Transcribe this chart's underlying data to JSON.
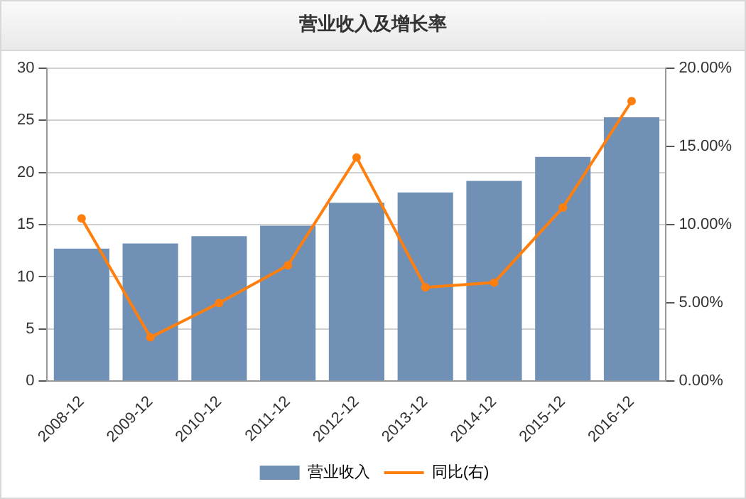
{
  "chart_data": {
    "type": "bar",
    "title": "营业收入及增长率",
    "categories": [
      "2008-12",
      "2009-12",
      "2010-12",
      "2011-12",
      "2012-12",
      "2013-12",
      "2014-12",
      "2015-12",
      "2016-12"
    ],
    "series": [
      {
        "name": "营业收入",
        "color": "#7190b6",
        "values": [
          12.7,
          13.2,
          13.9,
          14.9,
          17.1,
          18.1,
          19.2,
          21.5,
          25.3
        ]
      },
      {
        "name": "同比(右)",
        "type": "line",
        "axis": "y2",
        "color": "#ff7f0e",
        "values": [
          10.4,
          2.8,
          5.0,
          7.4,
          14.3,
          6.0,
          6.3,
          11.1,
          17.9
        ]
      }
    ],
    "ylim": [
      0,
      30
    ],
    "yticks": [
      0,
      5,
      10,
      15,
      20,
      25,
      30
    ],
    "y2lim": [
      0,
      20
    ],
    "y2ticks": [
      {
        "value": 0,
        "label": "0.00%"
      },
      {
        "value": 5,
        "label": "5.00%"
      },
      {
        "value": 10,
        "label": "10.00%"
      },
      {
        "value": 15,
        "label": "15.00%"
      },
      {
        "value": 20,
        "label": "20.00%"
      }
    ],
    "grid": "y",
    "legend": "bottom",
    "marker": "circle"
  }
}
